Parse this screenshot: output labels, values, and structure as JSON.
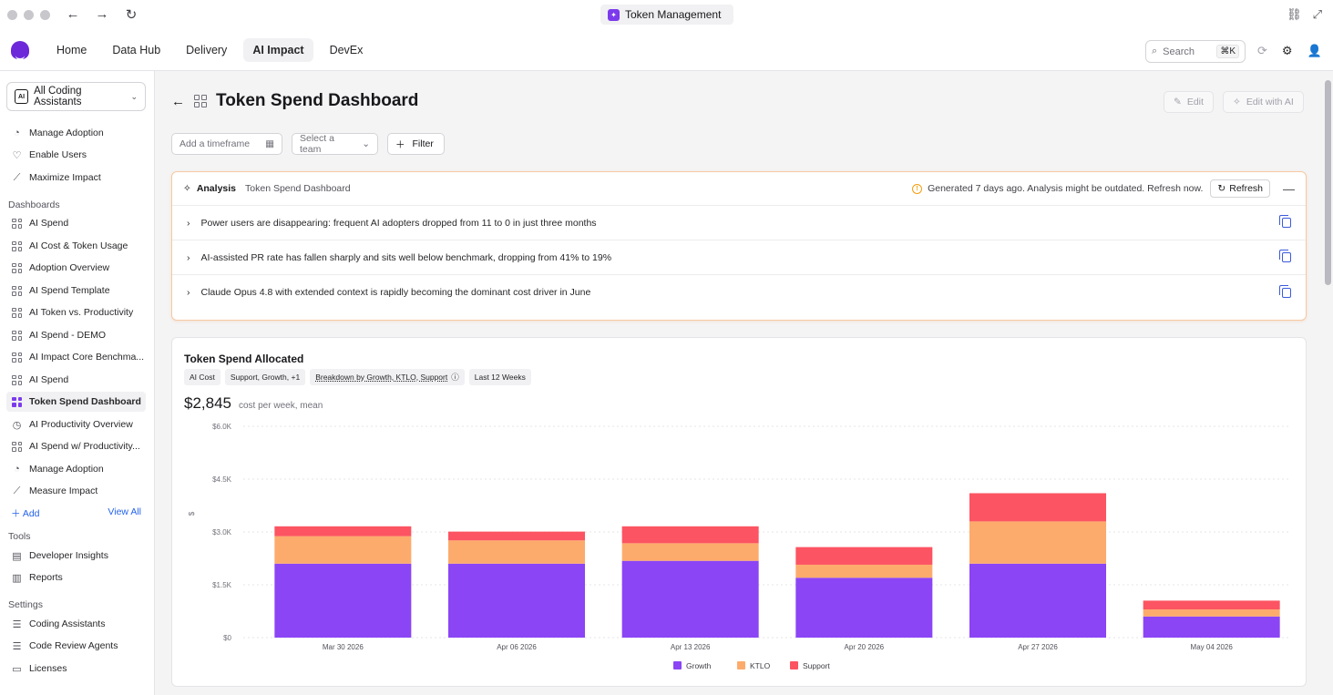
{
  "window": {
    "tab_title": "Token Management"
  },
  "nav": {
    "links": [
      "Home",
      "Data Hub",
      "Delivery",
      "AI Impact",
      "DevEx"
    ],
    "active": "AI Impact",
    "search_placeholder": "Search",
    "search_shortcut": "⌘K"
  },
  "sidebar": {
    "selector": "All Coding Assistants",
    "top_items": [
      {
        "label": "Manage Adoption",
        "icon": "pie-icon"
      },
      {
        "label": "Enable Users",
        "icon": "heart-icon"
      },
      {
        "label": "Maximize Impact",
        "icon": "trend-icon"
      }
    ],
    "dashboards_heading": "Dashboards",
    "dashboards": [
      {
        "label": "AI Spend",
        "icon": "dashboard-icon"
      },
      {
        "label": "AI Cost & Token Usage",
        "icon": "dashboard-icon"
      },
      {
        "label": "Adoption Overview",
        "icon": "dashboard-icon"
      },
      {
        "label": "AI Spend Template",
        "icon": "dashboard-icon"
      },
      {
        "label": "AI Token vs. Productivity",
        "icon": "dashboard-icon"
      },
      {
        "label": "AI Spend - DEMO",
        "icon": "dashboard-icon"
      },
      {
        "label": "AI Impact Core Benchma...",
        "icon": "dashboard-icon"
      },
      {
        "label": "AI Spend",
        "icon": "dashboard-icon"
      },
      {
        "label": "Token Spend Dashboard",
        "icon": "dashboard-icon",
        "active": true
      },
      {
        "label": "AI Productivity Overview",
        "icon": "gauge-icon"
      },
      {
        "label": "AI Spend w/ Productivity...",
        "icon": "dashboard-icon"
      },
      {
        "label": "Manage Adoption",
        "icon": "pie-icon"
      },
      {
        "label": "Measure Impact",
        "icon": "trend-icon"
      }
    ],
    "add_label": "Add",
    "view_all_label": "View All",
    "tools_heading": "Tools",
    "tools": [
      {
        "label": "Developer Insights",
        "icon": "document-icon"
      },
      {
        "label": "Reports",
        "icon": "report-icon"
      }
    ],
    "settings_heading": "Settings",
    "settings": [
      {
        "label": "Coding Assistants",
        "icon": "stack-icon"
      },
      {
        "label": "Code Review Agents",
        "icon": "stack-icon"
      },
      {
        "label": "Licenses",
        "icon": "id-card-icon"
      }
    ]
  },
  "page": {
    "title": "Token Spend Dashboard",
    "edit_label": "Edit",
    "edit_ai_label": "Edit with AI"
  },
  "filters": {
    "timeframe_placeholder": "Add a timeframe",
    "team_placeholder": "Select a team",
    "filter_label": "Filter"
  },
  "analysis": {
    "title": "Analysis",
    "subtitle": "Token Spend Dashboard",
    "status": "Generated 7 days ago. Analysis might be outdated. Refresh now.",
    "refresh_label": "Refresh",
    "insights": [
      "Power users are disappearing: frequent AI adopters dropped from 11 to 0 in just three months",
      "AI-assisted PR rate has fallen sharply and sits well below benchmark, dropping from 41% to 19%",
      "Claude Opus 4.8 with extended context is rapidly becoming the dominant cost driver in June"
    ]
  },
  "chart_card": {
    "title": "Token Spend Allocated",
    "chips": [
      "AI Cost",
      "Support, Growth, +1",
      "Breakdown by Growth, KTLO, Support",
      "Last 12 Weeks"
    ],
    "value": "$2,845",
    "value_caption": "cost per week, mean"
  },
  "chart_data": {
    "type": "bar",
    "stacked": true,
    "categories": [
      "Mar 30 2026",
      "Apr 06 2026",
      "Apr 13 2026",
      "Apr 20 2026",
      "Apr 27 2026",
      "May 04 2026"
    ],
    "series": [
      {
        "name": "Growth",
        "color": "#8b45f5",
        "values": [
          2100,
          2100,
          2180,
          1700,
          2100,
          600
        ]
      },
      {
        "name": "KTLO",
        "color": "#fdab6c",
        "values": [
          780,
          660,
          500,
          370,
          1200,
          200
        ]
      },
      {
        "name": "Support",
        "color": "#fc5462",
        "values": [
          280,
          250,
          480,
          500,
          800,
          250
        ]
      }
    ],
    "ylabel": "$",
    "ylim": [
      0,
      6000
    ],
    "yticks": [
      0,
      1500,
      3000,
      4500,
      6000
    ],
    "ytick_labels": [
      "$0",
      "$1.5K",
      "$3.0K",
      "$4.5K",
      "$6.0K"
    ],
    "grid": true,
    "legend_position": "bottom-center"
  }
}
